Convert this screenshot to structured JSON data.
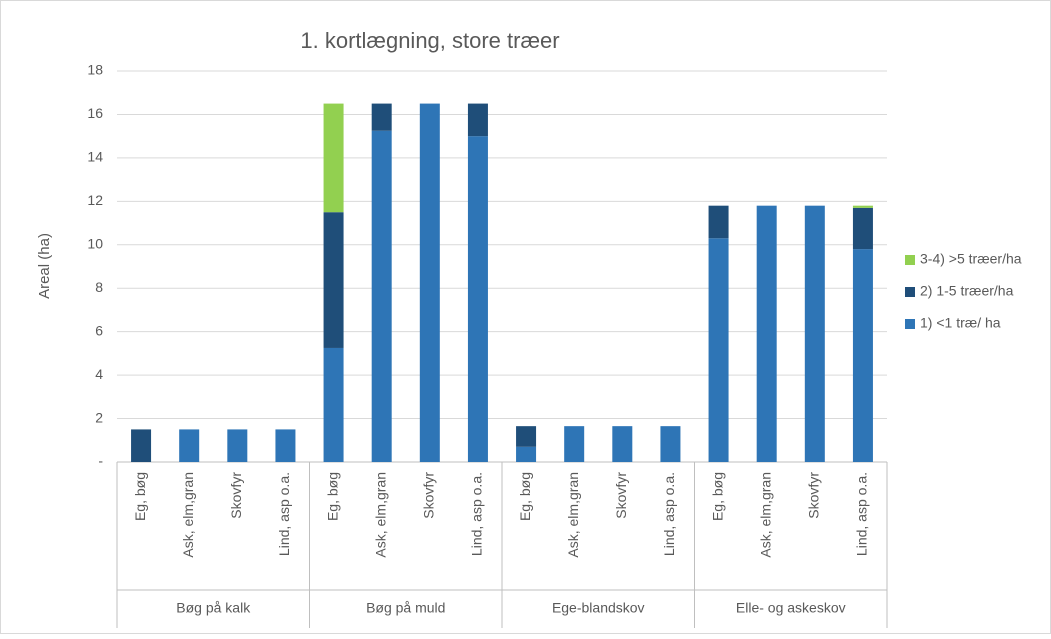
{
  "chart_data": {
    "type": "stacked_bar",
    "title": "1. kortlægning, store træer",
    "y_label": "Areal (ha)",
    "categories": [
      "Eg, bøg",
      "Ask, elm,gran",
      "Skovfyr",
      "Lind, asp o.a.",
      "Eg, bøg",
      "Ask, elm,gran",
      "Skovfyr",
      "Lind, asp o.a.",
      "Eg, bøg",
      "Ask, elm,gran",
      "Skovfyr",
      "Lind, asp o.a.",
      "Eg, bøg",
      "Ask, elm,gran",
      "Skovfyr",
      "Lind, asp o.a."
    ],
    "groups": [
      "Bøg på kalk",
      "Bøg på muld",
      "Ege-blandskov",
      "Elle- og askeskov"
    ],
    "series": [
      {
        "name": "1) <1 træ/ ha",
        "color": "#2e75b6",
        "values": [
          0,
          1.5,
          1.5,
          1.5,
          5.25,
          15.25,
          16.5,
          15,
          0.7,
          1.65,
          1.65,
          1.65,
          10.3,
          11.8,
          11.8,
          9.8
        ]
      },
      {
        "name": "2) 1-5 træer/ha",
        "color": "#1f4e79",
        "values": [
          1.5,
          0,
          0,
          0,
          6.25,
          1.25,
          0,
          1.5,
          0.95,
          0,
          0,
          0,
          1.5,
          0,
          0,
          1.9
        ]
      },
      {
        "name": "3-4) >5 træer/ha",
        "color": "#92d050",
        "values": [
          0,
          0,
          0,
          0,
          5,
          0,
          0,
          0,
          0,
          0,
          0,
          0,
          0,
          0,
          0,
          0.1
        ]
      }
    ],
    "ylim": [
      0,
      18
    ],
    "yticks": [
      {
        "value": 0,
        "label": "-"
      },
      2,
      4,
      6,
      8,
      10,
      12,
      14,
      16,
      18
    ],
    "grid": true,
    "legend": "right"
  }
}
